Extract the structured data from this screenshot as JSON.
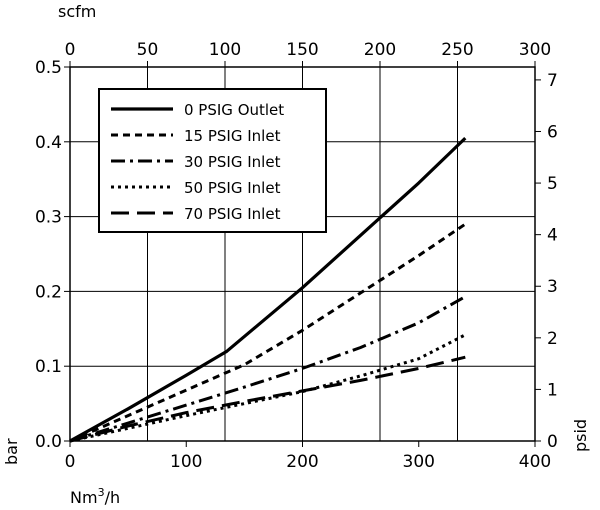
{
  "chart_data": {
    "type": "line",
    "title": "",
    "xlabel": "Nm³/h",
    "ylabel": "bar",
    "x2label": "scfm",
    "y2label": "psid",
    "xlim": [
      0,
      400
    ],
    "ylim": [
      0,
      0.5
    ],
    "x2lim": [
      0,
      300
    ],
    "y2lim": [
      0,
      7.25
    ],
    "xticks": [
      "0",
      "100",
      "200",
      "300",
      "400"
    ],
    "yticks": [
      "0.0",
      "0.1",
      "0.2",
      "0.3",
      "0.4",
      "0.5"
    ],
    "x2ticks": [
      "0",
      "50",
      "100",
      "150",
      "200",
      "250",
      "300"
    ],
    "y2ticks": [
      "0",
      "1",
      "2",
      "3",
      "4",
      "5",
      "6",
      "7"
    ],
    "grid": true,
    "legend_position": "top-left",
    "series": [
      {
        "name": "0 PSIG Outlet",
        "dash": "solid",
        "x": [
          0,
          50,
          100,
          135,
          200,
          250,
          300,
          340
        ],
        "y": [
          0,
          0.043,
          0.088,
          0.12,
          0.205,
          0.275,
          0.345,
          0.405
        ]
      },
      {
        "name": "15 PSIG Inlet",
        "dash": "short-dash",
        "x": [
          0,
          50,
          100,
          150,
          200,
          250,
          300,
          340
        ],
        "y": [
          0,
          0.034,
          0.068,
          0.102,
          0.148,
          0.198,
          0.248,
          0.29
        ]
      },
      {
        "name": "30 PSIG Inlet",
        "dash": "dash-dot",
        "x": [
          0,
          50,
          100,
          150,
          200,
          250,
          300,
          340
        ],
        "y": [
          0,
          0.024,
          0.048,
          0.072,
          0.097,
          0.125,
          0.158,
          0.193
        ]
      },
      {
        "name": "50 PSIG Inlet",
        "dash": "dotted",
        "x": [
          0,
          50,
          100,
          150,
          200,
          250,
          300,
          340
        ],
        "y": [
          0,
          0.017,
          0.034,
          0.05,
          0.066,
          0.087,
          0.11,
          0.142
        ]
      },
      {
        "name": "70 PSIG Inlet",
        "dash": "long-dash",
        "x": [
          0,
          50,
          100,
          150,
          200,
          250,
          300,
          340
        ],
        "y": [
          0,
          0.02,
          0.038,
          0.053,
          0.067,
          0.081,
          0.097,
          0.112
        ]
      }
    ]
  }
}
